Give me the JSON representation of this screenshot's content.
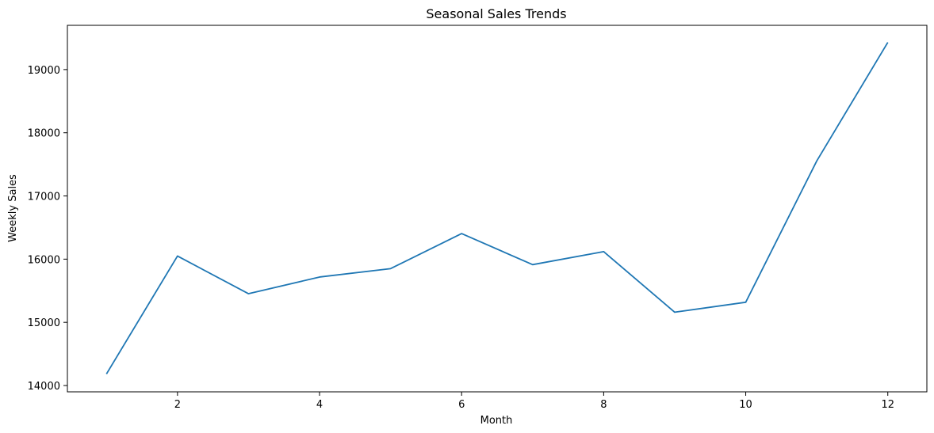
{
  "chart_data": {
    "type": "line",
    "title": "Seasonal Sales Trends",
    "xlabel": "Month",
    "ylabel": "Weekly Sales",
    "x": [
      1,
      2,
      3,
      4,
      5,
      6,
      7,
      8,
      9,
      10,
      11,
      12
    ],
    "series": [
      {
        "values": [
          14183,
          16049,
          15453,
          15717,
          15850,
          16404,
          15913,
          16119,
          15160,
          15318,
          17554,
          19430
        ],
        "color": "#1f77b4"
      }
    ],
    "xticks": [
      2,
      4,
      6,
      8,
      10,
      12
    ],
    "yticks": [
      14000,
      15000,
      16000,
      17000,
      18000,
      19000
    ],
    "xlim": [
      0.45,
      12.55
    ],
    "ylim": [
      13900,
      19700
    ],
    "grid": false,
    "legend": "none"
  }
}
